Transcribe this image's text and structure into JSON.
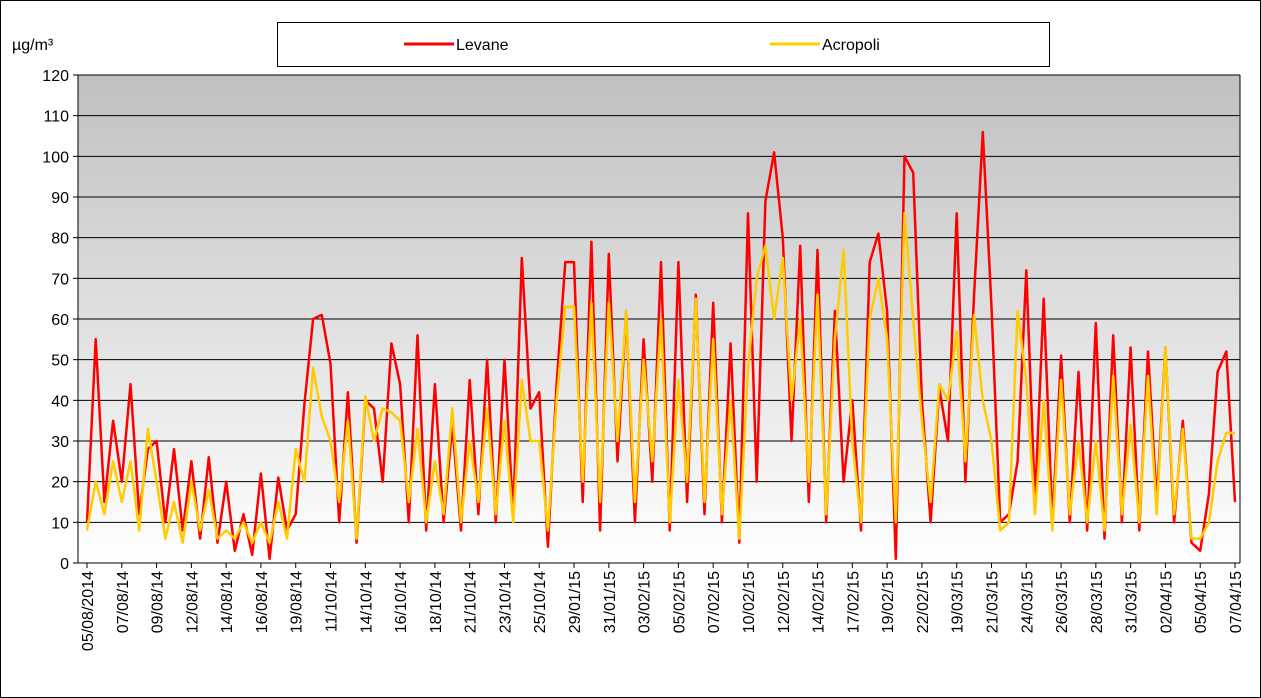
{
  "chart_data": {
    "type": "line",
    "y_label": "µg/m³",
    "ylim": [
      0,
      120
    ],
    "yticks": [
      0,
      10,
      20,
      30,
      40,
      50,
      60,
      70,
      80,
      90,
      100,
      110,
      120
    ],
    "grid": true,
    "legend": "top",
    "categories": [
      "05/08/2014",
      null,
      null,
      null,
      "07/08/14",
      null,
      null,
      null,
      "09/08/14",
      null,
      null,
      null,
      "12/08/14",
      null,
      null,
      null,
      "14/08/14",
      null,
      null,
      null,
      "16/08/14",
      null,
      null,
      null,
      "19/08/14",
      null,
      null,
      null,
      "11/10/14",
      null,
      null,
      null,
      "14/10/14",
      null,
      null,
      null,
      "16/10/14",
      null,
      null,
      null,
      "18/10/14",
      null,
      null,
      null,
      "21/10/14",
      null,
      null,
      null,
      "23/10/14",
      null,
      null,
      null,
      "25/10/14",
      null,
      null,
      null,
      "29/01/15",
      null,
      null,
      null,
      "31/01/15",
      null,
      null,
      null,
      "03/02/15",
      null,
      null,
      null,
      "05/02/15",
      null,
      null,
      null,
      "07/02/15",
      null,
      null,
      null,
      "10/02/15",
      null,
      null,
      null,
      "12/02/15",
      null,
      null,
      null,
      "14/02/15",
      null,
      null,
      null,
      "17/02/15",
      null,
      null,
      null,
      "19/02/15",
      null,
      null,
      null,
      "22/02/15",
      null,
      null,
      null,
      "19/03/15",
      null,
      null,
      null,
      "21/03/15",
      null,
      null,
      null,
      "24/03/15",
      null,
      null,
      null,
      "26/03/15",
      null,
      null,
      null,
      "28/03/15",
      null,
      null,
      null,
      "31/03/15",
      null,
      null,
      null,
      "02/04/15",
      null,
      null,
      null,
      "05/04/15",
      null,
      null,
      null,
      "07/04/15"
    ],
    "series": [
      {
        "name": "Levane",
        "color": "#ff0000",
        "values": [
          10,
          55,
          15,
          35,
          20,
          44,
          12,
          28,
          30,
          10,
          28,
          8,
          25,
          6,
          26,
          5,
          20,
          3,
          12,
          2,
          22,
          1,
          21,
          8,
          12,
          39,
          60,
          61,
          49,
          10,
          42,
          5,
          40,
          38,
          20,
          54,
          44,
          10,
          56,
          8,
          44,
          10,
          34,
          8,
          45,
          12,
          50,
          10,
          50,
          12,
          75,
          38,
          42,
          4,
          44,
          74,
          74,
          15,
          79,
          8,
          76,
          25,
          62,
          10,
          55,
          20,
          74,
          8,
          74,
          15,
          66,
          12,
          64,
          10,
          54,
          5,
          86,
          20,
          89,
          101,
          80,
          30,
          78,
          15,
          77,
          10,
          62,
          20,
          40,
          8,
          74,
          81,
          62,
          1,
          100,
          96,
          40,
          10,
          43,
          30,
          86,
          20,
          66,
          106,
          63,
          10,
          12,
          25,
          72,
          15,
          65,
          10,
          51,
          10,
          47,
          8,
          59,
          6,
          56,
          10,
          53,
          8,
          52,
          15,
          53,
          10,
          35,
          5,
          3,
          17,
          47,
          52,
          15
        ]
      },
      {
        "name": "Acropoli",
        "color": "#ffcc00",
        "values": [
          8,
          20,
          12,
          25,
          15,
          25,
          8,
          33,
          20,
          6,
          15,
          5,
          20,
          8,
          18,
          6,
          8,
          6,
          10,
          5,
          10,
          5,
          15,
          6,
          28,
          20,
          48,
          36,
          30,
          15,
          35,
          6,
          41,
          30,
          38,
          37,
          35,
          15,
          33,
          10,
          25,
          12,
          38,
          10,
          30,
          15,
          38,
          12,
          35,
          10,
          45,
          30,
          30,
          8,
          40,
          63,
          63,
          20,
          64,
          15,
          64,
          30,
          62,
          15,
          50,
          25,
          60,
          10,
          45,
          20,
          65,
          15,
          55,
          12,
          40,
          6,
          48,
          70,
          78,
          60,
          75,
          40,
          60,
          20,
          66,
          12,
          55,
          77,
          30,
          10,
          60,
          70,
          55,
          10,
          86,
          60,
          35,
          15,
          44,
          40,
          57,
          25,
          61,
          40,
          30,
          8,
          10,
          62,
          45,
          12,
          40,
          8,
          45,
          12,
          30,
          10,
          30,
          8,
          46,
          12,
          34,
          10,
          46,
          12,
          53,
          12,
          33,
          6,
          6,
          10,
          25,
          32,
          32
        ]
      }
    ]
  }
}
